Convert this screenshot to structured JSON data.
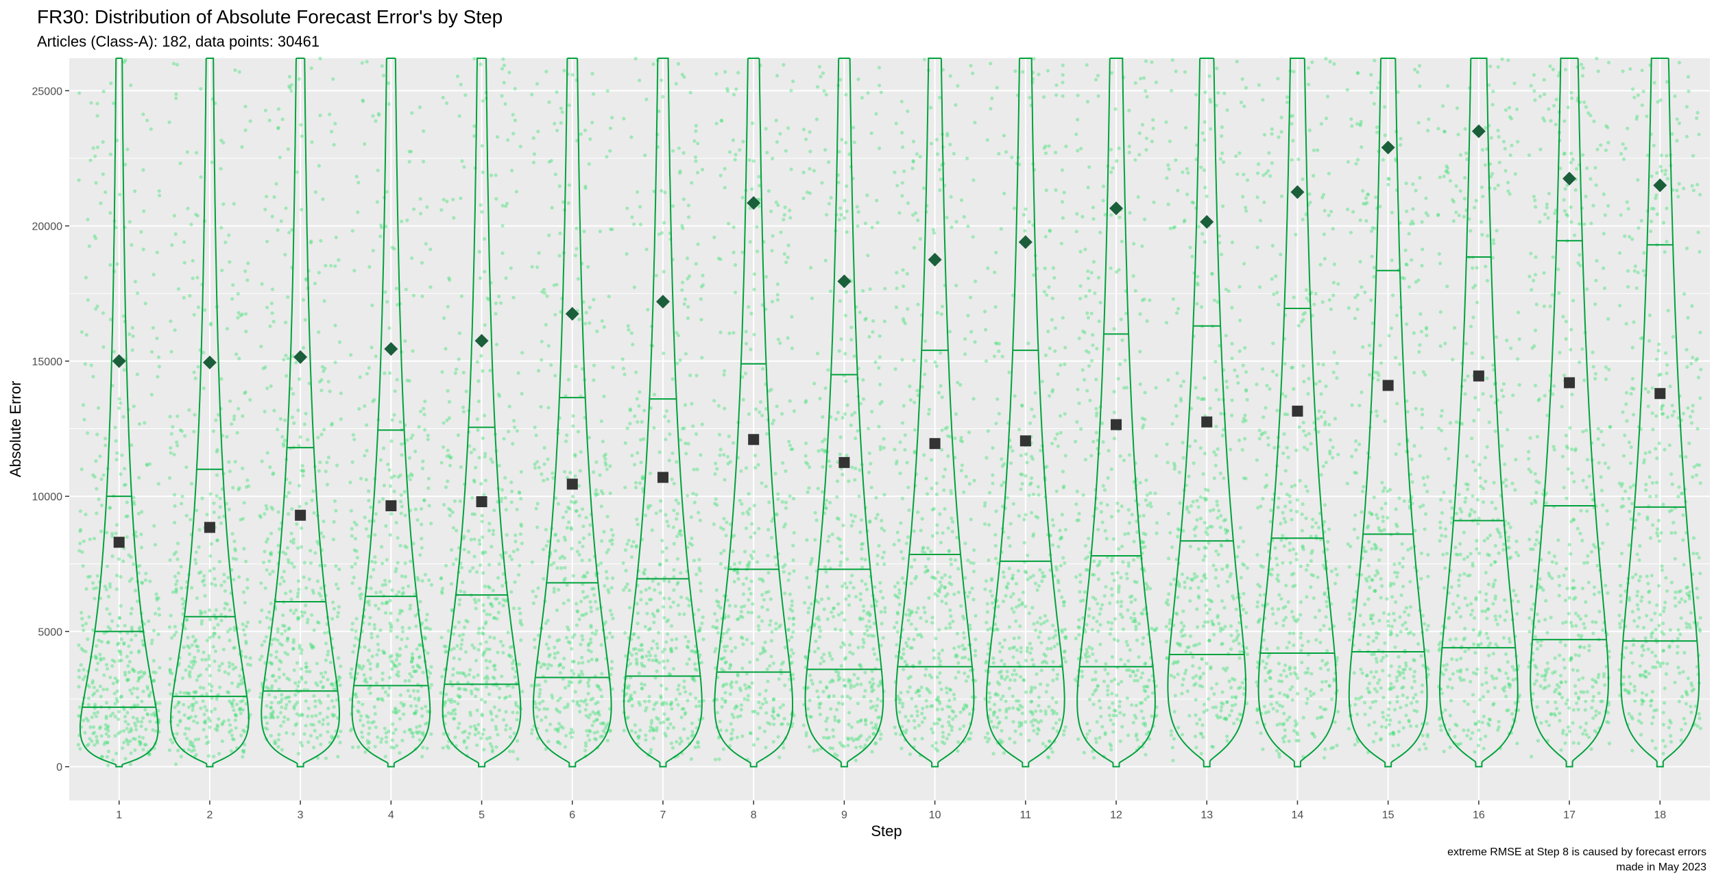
{
  "chart_data": {
    "type": "violin",
    "title": "FR30: Distribution of Absolute Forecast Error's by Step",
    "subtitle": "Articles (Class-A): 182,  data points: 30461",
    "xlabel": "Step",
    "ylabel": "Absolute Error",
    "caption_lines": [
      "extreme RMSE at Step 8 is caused by forecast errors",
      "made in May 2023"
    ],
    "xlim": [
      0.45,
      18.55
    ],
    "ylim": [
      -1250,
      26200
    ],
    "y_ticks": [
      0,
      5000,
      10000,
      15000,
      20000,
      25000
    ],
    "x_ticks": [
      "1",
      "2",
      "3",
      "4",
      "5",
      "6",
      "7",
      "8",
      "9",
      "10",
      "11",
      "12",
      "13",
      "14",
      "15",
      "16",
      "17",
      "18"
    ],
    "grid": true,
    "marker_shapes": {
      "mean": "square",
      "rmse": "diamond"
    },
    "colors": {
      "panel": "#ebebeb",
      "grid": "#ffffff",
      "violin_outline": "#00a23c",
      "violin_fill": "#ffffff",
      "points": "#47e07a",
      "mean_marker": "#333333",
      "rmse_marker": "#1a5e3a"
    },
    "steps": [
      {
        "step": 1,
        "q1": 2200,
        "median": 5000,
        "q3": 10000,
        "mean": 8300,
        "rmse": 15000
      },
      {
        "step": 2,
        "q1": 2600,
        "median": 5550,
        "q3": 11000,
        "mean": 8850,
        "rmse": 14950
      },
      {
        "step": 3,
        "q1": 2800,
        "median": 6100,
        "q3": 11800,
        "mean": 9300,
        "rmse": 15150
      },
      {
        "step": 4,
        "q1": 3000,
        "median": 6300,
        "q3": 12450,
        "mean": 9650,
        "rmse": 15450
      },
      {
        "step": 5,
        "q1": 3050,
        "median": 6350,
        "q3": 12550,
        "mean": 9800,
        "rmse": 15750
      },
      {
        "step": 6,
        "q1": 3300,
        "median": 6800,
        "q3": 13650,
        "mean": 10450,
        "rmse": 16750
      },
      {
        "step": 7,
        "q1": 3350,
        "median": 6950,
        "q3": 13600,
        "mean": 10700,
        "rmse": 17200
      },
      {
        "step": 8,
        "q1": 3500,
        "median": 7300,
        "q3": 14900,
        "mean": 12100,
        "rmse": 20850
      },
      {
        "step": 9,
        "q1": 3600,
        "median": 7300,
        "q3": 14500,
        "mean": 11250,
        "rmse": 17950
      },
      {
        "step": 10,
        "q1": 3700,
        "median": 7850,
        "q3": 15400,
        "mean": 11950,
        "rmse": 18750
      },
      {
        "step": 11,
        "q1": 3700,
        "median": 7600,
        "q3": 15400,
        "mean": 12050,
        "rmse": 19400
      },
      {
        "step": 12,
        "q1": 3700,
        "median": 7800,
        "q3": 16000,
        "mean": 12650,
        "rmse": 20650
      },
      {
        "step": 13,
        "q1": 4150,
        "median": 8350,
        "q3": 16300,
        "mean": 12750,
        "rmse": 20150
      },
      {
        "step": 14,
        "q1": 4200,
        "median": 8450,
        "q3": 16950,
        "mean": 13150,
        "rmse": 21250
      },
      {
        "step": 15,
        "q1": 4250,
        "median": 8600,
        "q3": 18350,
        "mean": 14100,
        "rmse": 22900
      },
      {
        "step": 16,
        "q1": 4400,
        "median": 9100,
        "q3": 18850,
        "mean": 14450,
        "rmse": 23500
      },
      {
        "step": 17,
        "q1": 4700,
        "median": 9650,
        "q3": 19450,
        "mean": 14200,
        "rmse": 21750
      },
      {
        "step": 18,
        "q1": 4650,
        "median": 9600,
        "q3": 19300,
        "mean": 13800,
        "rmse": 21500
      }
    ]
  }
}
